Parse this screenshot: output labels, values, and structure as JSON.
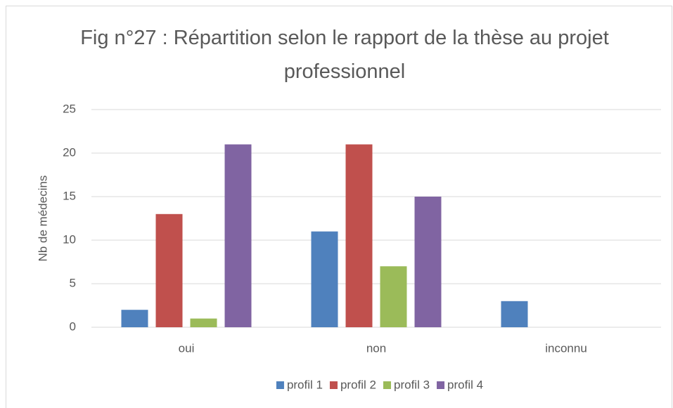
{
  "chart_data": {
    "type": "bar",
    "title": "Fig n°27 : Répartition selon le rapport de la thèse au projet professionnel",
    "y_label": "Nb de médecins",
    "categories": [
      "oui",
      "non",
      "inconnu"
    ],
    "series": [
      {
        "name": "profil 1",
        "color": "#4f81bd",
        "values": [
          2,
          11,
          3
        ]
      },
      {
        "name": "profil 2",
        "color": "#c0504d",
        "values": [
          13,
          21,
          0
        ]
      },
      {
        "name": "profil 3",
        "color": "#9bbb59",
        "values": [
          1,
          7,
          0
        ]
      },
      {
        "name": "profil 4",
        "color": "#8064a2",
        "values": [
          21,
          15,
          0
        ]
      }
    ],
    "ylim": [
      0,
      25
    ],
    "yticks": [
      0,
      5,
      10,
      15,
      20,
      25
    ],
    "grid": true,
    "legend": "bottom"
  }
}
